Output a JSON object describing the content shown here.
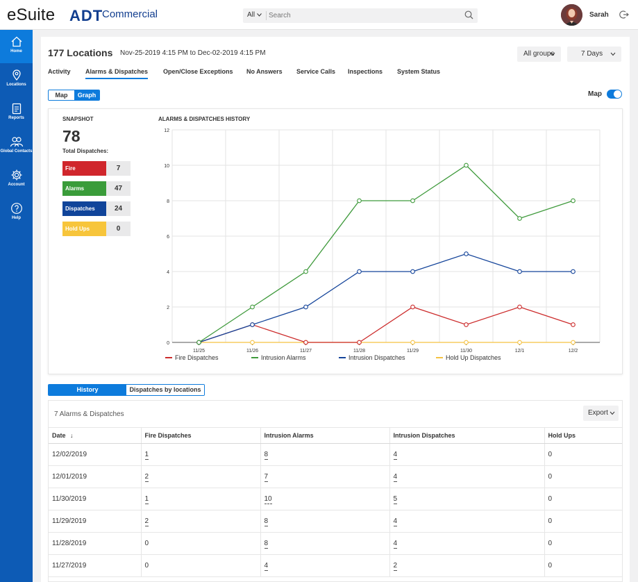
{
  "header": {
    "brand": "eSuite",
    "partner_logo": "ADT",
    "partner_sub": "Commercial",
    "search_scope": "All",
    "search_placeholder": "Search",
    "user_name": "Sarah"
  },
  "sidebar": {
    "items": [
      {
        "label": "Home",
        "icon": "home-icon",
        "active": true
      },
      {
        "label": "Locations",
        "icon": "location-pin-icon",
        "active": false
      },
      {
        "label": "Reports",
        "icon": "clipboard-icon",
        "active": false
      },
      {
        "label": "Global Contacts",
        "icon": "contacts-icon",
        "active": false
      },
      {
        "label": "Account",
        "icon": "gear-icon",
        "active": false
      },
      {
        "label": "Help",
        "icon": "help-icon",
        "active": false
      }
    ]
  },
  "page": {
    "title": "177 Locations",
    "date_range": "Nov-25-2019 4:15 PM to Dec-02-2019 4:15 PM",
    "groups_select": "All groups",
    "days_select": "7 Days",
    "tabs": [
      "Activity",
      "Alarms & Dispatches",
      "Open/Close Exceptions",
      "No Answers",
      "Service Calls",
      "Inspections",
      "System Status"
    ],
    "active_tab": "Alarms & Dispatches",
    "view_toggle": {
      "map": "Map",
      "graph": "Graph",
      "selected": "Graph"
    },
    "map_switch_label": "Map",
    "map_switch_on": true
  },
  "snapshot": {
    "title": "SNAPSHOT",
    "total": "78",
    "total_label": "Total Dispatches:",
    "rows": [
      {
        "label": "Fire",
        "value": "7",
        "color": "#d0262c"
      },
      {
        "label": "Alarms",
        "value": "47",
        "color": "#3a9c3a"
      },
      {
        "label": "Dispatches",
        "value": "24",
        "color": "#10449a"
      },
      {
        "label": "Hold Ups",
        "value": "0",
        "color": "#f7c53b"
      }
    ]
  },
  "chart_data": {
    "type": "line",
    "title": "ALARMS & DISPATCHES HISTORY",
    "categories": [
      "11/25",
      "11/26",
      "11/27",
      "11/28",
      "11/29",
      "11/30",
      "12/1",
      "12/2"
    ],
    "ylim": [
      0,
      12
    ],
    "yticks": [
      0,
      2,
      4,
      6,
      8,
      10,
      12
    ],
    "grid": true,
    "legend_position": "bottom",
    "series": [
      {
        "name": "Fire Dispatches",
        "color": "#cc2b2b",
        "values": [
          0,
          1,
          0,
          0,
          2,
          1,
          2,
          1
        ]
      },
      {
        "name": "Intrusion Alarms",
        "color": "#3f9a3c",
        "values": [
          0,
          2,
          4,
          8,
          8,
          10,
          7,
          8
        ]
      },
      {
        "name": "Intrusion Dispatches",
        "color": "#14449a",
        "values": [
          0,
          1,
          2,
          4,
          4,
          5,
          4,
          4
        ]
      },
      {
        "name": "Hold Up Dispatches",
        "color": "#f5c242",
        "values": [
          0,
          0,
          0,
          0,
          0,
          0,
          0,
          0
        ]
      }
    ]
  },
  "history": {
    "toggle": {
      "history": "History",
      "by_locations": "Dispatches by locations"
    },
    "summary": "7 Alarms & Dispatches",
    "export_label": "Export",
    "columns": [
      "Date",
      "Fire Dispatches",
      "Intrusion Alarms",
      "Intrusion Dispatches",
      "Hold Ups"
    ],
    "sort_indicator": "↓",
    "rows": [
      [
        "12/02/2019",
        "1",
        "8",
        "4",
        "0"
      ],
      [
        "12/01/2019",
        "2",
        "7",
        "4",
        "0"
      ],
      [
        "11/30/2019",
        "1",
        "10",
        "5",
        "0"
      ],
      [
        "11/29/2019",
        "2",
        "8",
        "4",
        "0"
      ],
      [
        "11/28/2019",
        "0",
        "8",
        "4",
        "0"
      ],
      [
        "11/27/2019",
        "0",
        "4",
        "2",
        "0"
      ]
    ]
  }
}
